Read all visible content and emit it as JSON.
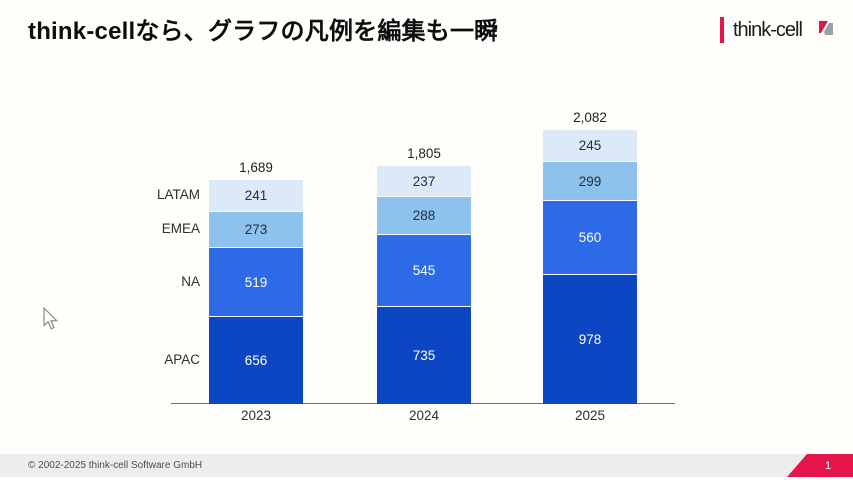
{
  "title": "think-cellなら、グラフの凡例を編集も一瞬",
  "logo": {
    "text": "think-cell",
    "icon": "think-cell-page-icon",
    "accent_color": "#e5154a"
  },
  "chart_data": {
    "type": "bar",
    "stacked": true,
    "categories": [
      "2023",
      "2024",
      "2025"
    ],
    "series": [
      {
        "name": "APAC",
        "values": [
          656,
          735,
          978
        ],
        "color": "#0c46c2",
        "label_color": "#ffffff"
      },
      {
        "name": "NA",
        "values": [
          519,
          545,
          560
        ],
        "color": "#2d6ae8",
        "label_color": "#ffffff"
      },
      {
        "name": "EMEA",
        "values": [
          273,
          288,
          299
        ],
        "color": "#8dc2ef",
        "label_color": "#243038"
      },
      {
        "name": "LATAM",
        "values": [
          241,
          237,
          245
        ],
        "color": "#dbe9f8",
        "label_color": "#243038"
      }
    ],
    "totals": [
      "1,689",
      "1,805",
      "2,082"
    ],
    "totals_numeric": [
      1689,
      1805,
      2082
    ],
    "legend_position": "left",
    "value_labels_visible": true,
    "grid": false,
    "xlabel": "",
    "ylabel": ""
  },
  "cursor": {
    "type": "arrow-pointer"
  },
  "footer": {
    "copyright": "© 2002-2025 think-cell Software GmbH",
    "page_number": "1",
    "bar_color": "#ededed",
    "badge_color": "#e5154a"
  }
}
